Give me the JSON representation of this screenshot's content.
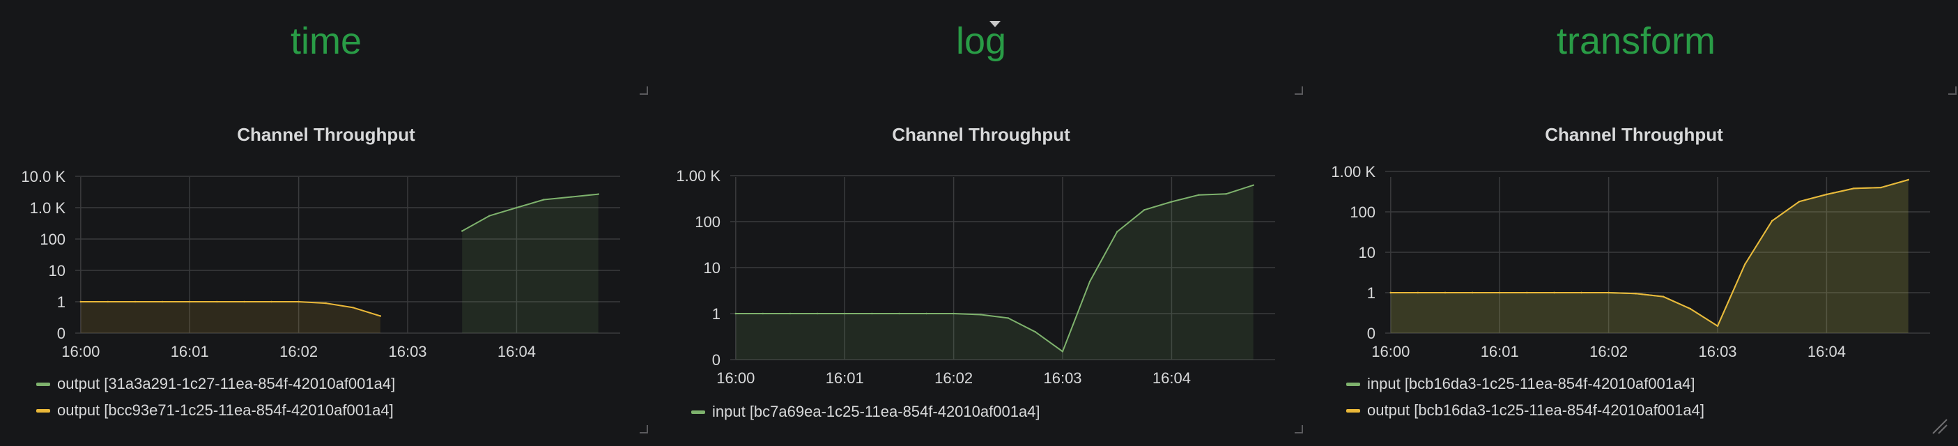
{
  "colors": {
    "background": "#161719",
    "panel_title": "#299c46",
    "chart_title": "#d8d9da",
    "grid": "#3a3b3d",
    "tick": "#d8d9da",
    "series_green": "#7eb26d",
    "series_yellow": "#eab839"
  },
  "panels": [
    {
      "title": "time",
      "chart_title": "Channel Throughput",
      "legend": [
        {
          "label": "output [31a3a291-1c27-11ea-854f-42010af001a4]",
          "color": "#7eb26d"
        },
        {
          "label": "output [bcc93e71-1c25-11ea-854f-42010af001a4]",
          "color": "#eab839"
        }
      ]
    },
    {
      "title": "log",
      "chart_title": "Channel Throughput",
      "legend": [
        {
          "label": "input [bc7a69ea-1c25-11ea-854f-42010af001a4]",
          "color": "#7eb26d"
        }
      ]
    },
    {
      "title": "transform",
      "chart_title": "Channel Throughput",
      "legend": [
        {
          "label": "input [bcb16da3-1c25-11ea-854f-42010af001a4]",
          "color": "#7eb26d"
        },
        {
          "label": "output [bcb16da3-1c25-11ea-854f-42010af001a4]",
          "color": "#eab839"
        }
      ]
    }
  ],
  "chart_data": [
    {
      "type": "area",
      "title": "Channel Throughput",
      "y_scale": "log",
      "ylim": [
        0,
        10000
      ],
      "y_ticks": [
        "0",
        "1",
        "10",
        "100",
        "1.0 K",
        "10.0 K"
      ],
      "x_ticks": [
        "16:00",
        "16:01",
        "16:02",
        "16:03",
        "16:04"
      ],
      "xlim": [
        "15:59:57",
        "16:04:57"
      ],
      "grid": true,
      "legend_position": "bottom-left",
      "series": [
        {
          "name": "output [31a3a291-1c27-11ea-854f-42010af001a4]",
          "color": "#7eb26d",
          "x": [
            "16:03:30",
            "16:03:45",
            "16:04:00",
            "16:04:15",
            "16:04:30",
            "16:04:45"
          ],
          "y": [
            180,
            550,
            1000,
            1800,
            2200,
            2700
          ]
        },
        {
          "name": "output [bcc93e71-1c25-11ea-854f-42010af001a4]",
          "color": "#eab839",
          "x": [
            "16:00:00",
            "16:00:15",
            "16:00:30",
            "16:00:45",
            "16:01:00",
            "16:01:15",
            "16:01:30",
            "16:01:45",
            "16:02:00",
            "16:02:15",
            "16:02:30",
            "16:02:45"
          ],
          "y": [
            1,
            1,
            1,
            1,
            1,
            1,
            1,
            1,
            1,
            0.9,
            0.65,
            0.35
          ]
        }
      ]
    },
    {
      "type": "area",
      "title": "Channel Throughput",
      "y_scale": "log",
      "ylim": [
        0,
        1000
      ],
      "y_ticks": [
        "0",
        "1",
        "10",
        "100",
        "1.00 K"
      ],
      "x_ticks": [
        "16:00",
        "16:01",
        "16:02",
        "16:03",
        "16:04"
      ],
      "xlim": [
        "15:59:57",
        "16:04:57"
      ],
      "grid": true,
      "legend_position": "bottom-left",
      "series": [
        {
          "name": "input [bc7a69ea-1c25-11ea-854f-42010af001a4]",
          "color": "#7eb26d",
          "x": [
            "16:00:00",
            "16:00:15",
            "16:00:30",
            "16:00:45",
            "16:01:00",
            "16:01:15",
            "16:01:30",
            "16:01:45",
            "16:02:00",
            "16:02:15",
            "16:02:30",
            "16:02:45",
            "16:03:00",
            "16:03:15",
            "16:03:30",
            "16:03:45",
            "16:04:00",
            "16:04:15",
            "16:04:30",
            "16:04:45"
          ],
          "y": [
            1,
            1,
            1,
            1,
            1,
            1,
            1,
            1,
            1,
            0.95,
            0.8,
            0.4,
            0.15,
            5,
            60,
            180,
            270,
            380,
            400,
            620
          ]
        }
      ]
    },
    {
      "type": "area",
      "title": "Channel Throughput",
      "y_scale": "log",
      "ylim": [
        0,
        1000
      ],
      "y_ticks": [
        "0",
        "1",
        "10",
        "100",
        "1.00 K"
      ],
      "x_ticks": [
        "16:00",
        "16:01",
        "16:02",
        "16:03",
        "16:04"
      ],
      "xlim": [
        "15:59:57",
        "16:04:57"
      ],
      "grid": true,
      "legend_position": "bottom-left",
      "series": [
        {
          "name": "input [bcb16da3-1c25-11ea-854f-42010af001a4]",
          "color": "#7eb26d",
          "x": [
            "16:00:00",
            "16:00:15",
            "16:00:30",
            "16:00:45",
            "16:01:00",
            "16:01:15",
            "16:01:30",
            "16:01:45",
            "16:02:00",
            "16:02:15",
            "16:02:30",
            "16:02:45",
            "16:03:00",
            "16:03:15",
            "16:03:30",
            "16:03:45",
            "16:04:00",
            "16:04:15",
            "16:04:30",
            "16:04:45"
          ],
          "y": [
            1,
            1,
            1,
            1,
            1,
            1,
            1,
            1,
            1,
            0.95,
            0.8,
            0.4,
            0.15,
            5,
            60,
            180,
            270,
            380,
            400,
            620
          ]
        },
        {
          "name": "output [bcb16da3-1c25-11ea-854f-42010af001a4]",
          "color": "#eab839",
          "x": [
            "16:00:00",
            "16:00:15",
            "16:00:30",
            "16:00:45",
            "16:01:00",
            "16:01:15",
            "16:01:30",
            "16:01:45",
            "16:02:00",
            "16:02:15",
            "16:02:30",
            "16:02:45",
            "16:03:00",
            "16:03:15",
            "16:03:30",
            "16:03:45",
            "16:04:00",
            "16:04:15",
            "16:04:30",
            "16:04:45"
          ],
          "y": [
            1,
            1,
            1,
            1,
            1,
            1,
            1,
            1,
            1,
            0.95,
            0.8,
            0.4,
            0.15,
            5,
            60,
            180,
            270,
            380,
            400,
            620
          ]
        }
      ]
    }
  ]
}
